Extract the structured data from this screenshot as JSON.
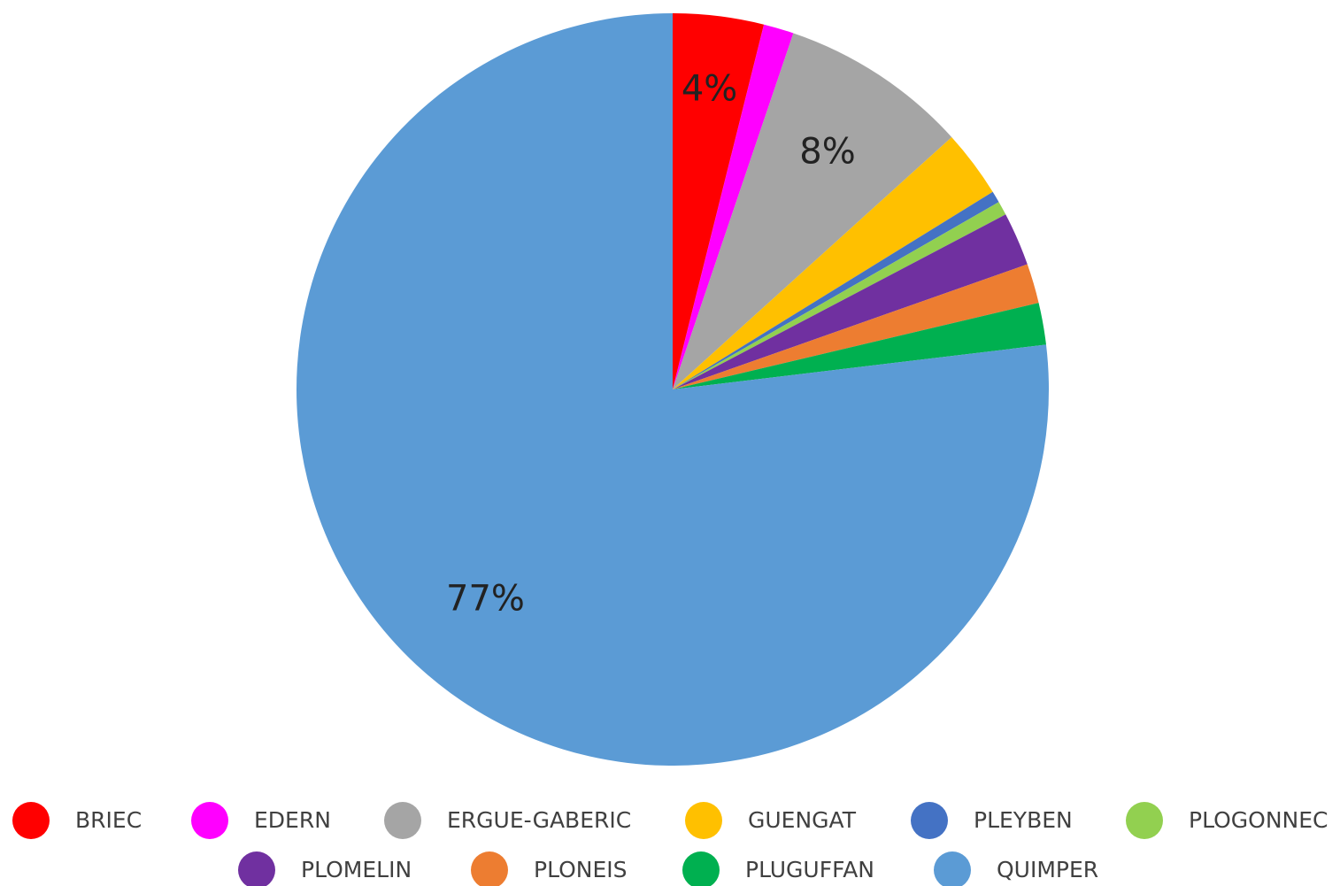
{
  "chart_data": {
    "type": "pie",
    "categories": [
      "BRIEC",
      "EDERN",
      "ERGUE-GABERIC",
      "GUENGAT",
      "PLEYBEN",
      "PLOGONNEC",
      "PLOMELIN",
      "PLONEIS",
      "PLUGUFFAN",
      "QUIMPER"
    ],
    "values": [
      3.9,
      1.3,
      8.1,
      2.9,
      0.5,
      0.6,
      2.3,
      1.7,
      1.8,
      76.9
    ],
    "value_labels": [
      "4%",
      null,
      "8%",
      null,
      null,
      null,
      null,
      null,
      null,
      "77%"
    ],
    "colors": [
      "#ff0000",
      "#ff00ff",
      "#a5a5a5",
      "#ffc000",
      "#4472c4",
      "#92d050",
      "#7030a0",
      "#ed7d31",
      "#00b050",
      "#5b9bd5"
    ],
    "legend": "bottom"
  }
}
